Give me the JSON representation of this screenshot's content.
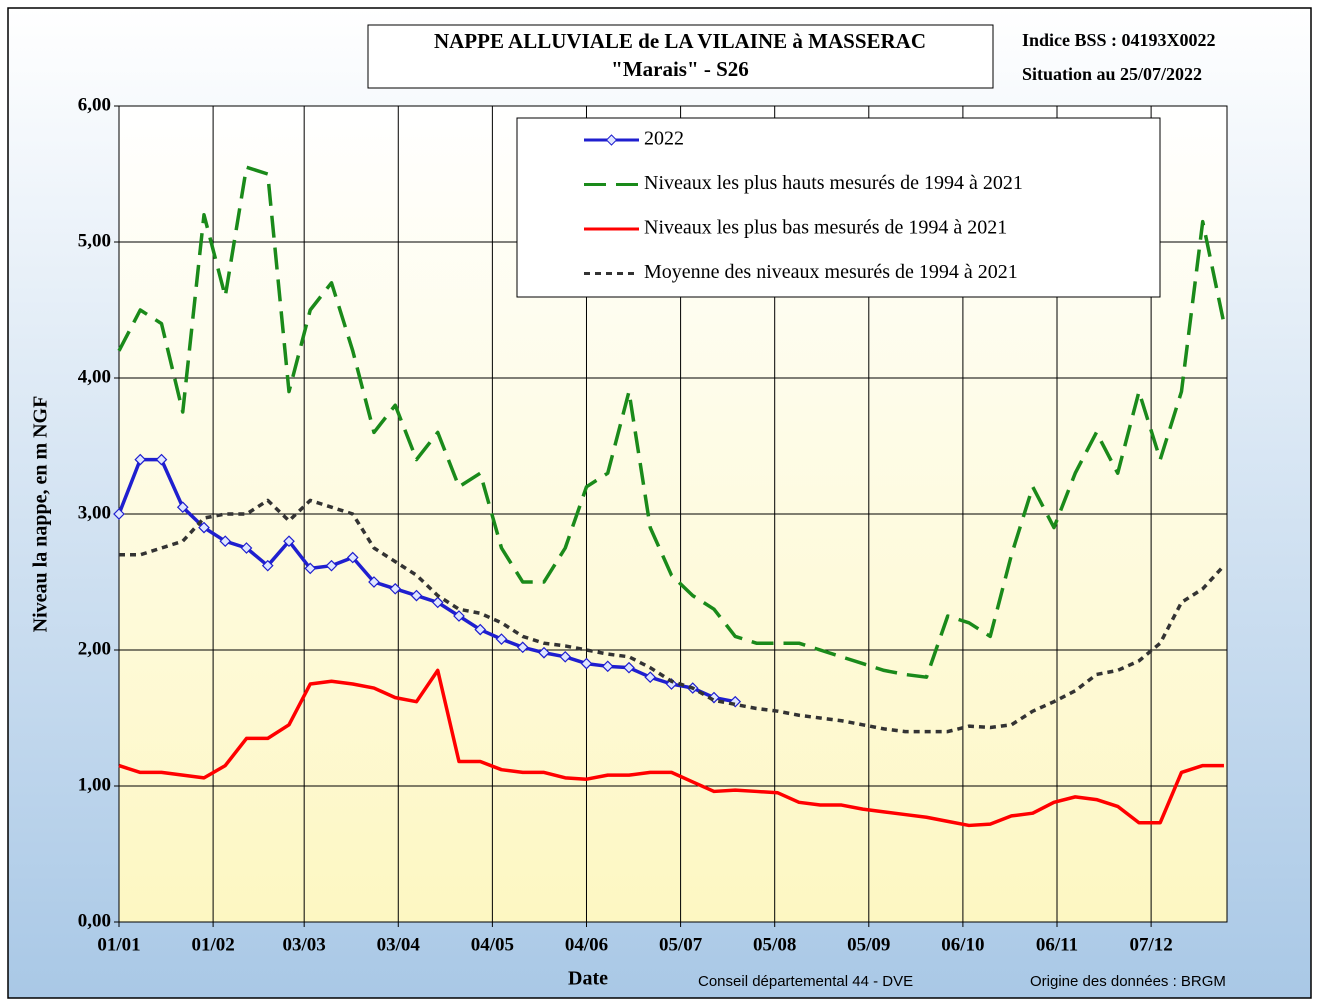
{
  "chart_data": {
    "type": "line",
    "title": "NAPPE ALLUVIALE de LA VILAINE à MASSERAC",
    "subtitle": "\"Marais\" - S26",
    "annotations": [
      "Indice BSS : 04193X0022",
      "Situation au 25/07/2022"
    ],
    "footnotes": [
      "Conseil départemental  44 - DVE",
      "Origine des données : BRGM"
    ],
    "xlabel": "Date",
    "ylabel": "Niveau la nappe, en m NGF",
    "x": [
      0,
      7,
      14,
      21,
      28,
      35,
      42,
      49,
      56,
      63,
      70,
      77,
      84,
      91,
      98,
      105,
      112,
      119,
      126,
      133,
      140,
      147,
      154,
      161,
      168,
      175,
      182,
      189,
      196,
      203,
      210,
      217,
      224,
      231,
      238,
      245,
      252,
      259,
      266,
      273,
      280,
      287,
      294,
      301,
      308,
      315,
      322,
      329,
      336,
      343,
      350,
      357,
      364
    ],
    "xlim": [
      0,
      365
    ],
    "xticks": [
      {
        "value": 0,
        "label": "01/01"
      },
      {
        "value": 31,
        "label": "01/02"
      },
      {
        "value": 61,
        "label": "03/03"
      },
      {
        "value": 92,
        "label": "03/04"
      },
      {
        "value": 123,
        "label": "04/05"
      },
      {
        "value": 154,
        "label": "04/06"
      },
      {
        "value": 185,
        "label": "05/07"
      },
      {
        "value": 216,
        "label": "05/08"
      },
      {
        "value": 247,
        "label": "05/09"
      },
      {
        "value": 278,
        "label": "06/10"
      },
      {
        "value": 309,
        "label": "06/11"
      },
      {
        "value": 340,
        "label": "07/12"
      }
    ],
    "ylim": [
      0,
      6
    ],
    "yticks": [
      {
        "value": 0,
        "label": "0,00"
      },
      {
        "value": 1,
        "label": "1,00"
      },
      {
        "value": 2,
        "label": "2,00"
      },
      {
        "value": 3,
        "label": "3,00"
      },
      {
        "value": 4,
        "label": "4,00"
      },
      {
        "value": 5,
        "label": "5,00"
      },
      {
        "value": 6,
        "label": "6,00"
      }
    ],
    "grid": true,
    "legend": "top-right",
    "series": [
      {
        "name": "2022",
        "color": "#1f1fcf",
        "style": "solid",
        "marker": "diamond",
        "values": [
          3.0,
          3.4,
          3.4,
          3.05,
          2.9,
          2.8,
          2.75,
          2.62,
          2.8,
          2.6,
          2.62,
          2.68,
          2.5,
          2.45,
          2.4,
          2.35,
          2.25,
          2.15,
          2.08,
          2.02,
          1.98,
          1.95,
          1.9,
          1.88,
          1.87,
          1.8,
          1.75,
          1.72,
          1.65,
          1.62,
          null,
          null,
          null,
          null,
          null,
          null,
          null,
          null,
          null,
          null,
          null,
          null,
          null,
          null,
          null,
          null,
          null,
          null,
          null,
          null,
          null,
          null,
          null
        ]
      },
      {
        "name": "Niveaux les plus hauts mesurés de 1994 à 2021",
        "color": "#1a8a1a",
        "style": "dashed",
        "values": [
          4.2,
          4.5,
          4.4,
          3.75,
          5.2,
          4.6,
          5.55,
          5.5,
          3.9,
          4.5,
          4.7,
          4.2,
          3.6,
          3.8,
          3.4,
          3.6,
          3.2,
          3.3,
          2.75,
          2.5,
          2.5,
          2.75,
          3.2,
          3.3,
          3.9,
          2.9,
          2.55,
          2.4,
          2.3,
          2.1,
          2.05,
          2.05,
          2.05,
          2.0,
          1.95,
          1.9,
          1.85,
          1.82,
          1.8,
          2.25,
          2.2,
          2.1,
          2.7,
          3.2,
          2.9,
          3.3,
          3.6,
          3.3,
          3.9,
          3.4,
          3.9,
          5.15,
          4.4
        ]
      },
      {
        "name": "Niveaux les plus bas mesurés de 1994 à 2021",
        "color": "#ff0000",
        "style": "solid",
        "values": [
          1.15,
          1.1,
          1.1,
          1.08,
          1.06,
          1.15,
          1.35,
          1.35,
          1.45,
          1.75,
          1.77,
          1.75,
          1.72,
          1.65,
          1.62,
          1.85,
          1.18,
          1.18,
          1.12,
          1.1,
          1.1,
          1.06,
          1.05,
          1.08,
          1.08,
          1.1,
          1.1,
          1.03,
          0.96,
          0.97,
          0.96,
          0.95,
          0.88,
          0.86,
          0.86,
          0.83,
          0.81,
          0.79,
          0.77,
          0.74,
          0.71,
          0.72,
          0.78,
          0.8,
          0.88,
          0.92,
          0.9,
          0.85,
          0.73,
          0.73,
          1.1,
          1.15,
          1.15
        ]
      },
      {
        "name": "Moyenne des niveaux mesurés de 1994 à 2021",
        "color": "#333333",
        "style": "dotted",
        "values": [
          2.7,
          2.7,
          2.75,
          2.8,
          2.97,
          3.0,
          3.0,
          3.1,
          2.95,
          3.1,
          3.05,
          3.0,
          2.75,
          2.65,
          2.55,
          2.4,
          2.3,
          2.27,
          2.2,
          2.1,
          2.05,
          2.03,
          2.0,
          1.97,
          1.95,
          1.87,
          1.77,
          1.72,
          1.63,
          1.6,
          1.57,
          1.55,
          1.52,
          1.5,
          1.48,
          1.45,
          1.42,
          1.4,
          1.4,
          1.4,
          1.44,
          1.43,
          1.45,
          1.55,
          1.62,
          1.7,
          1.82,
          1.85,
          1.92,
          2.05,
          2.35,
          2.45,
          2.62
        ]
      }
    ]
  }
}
